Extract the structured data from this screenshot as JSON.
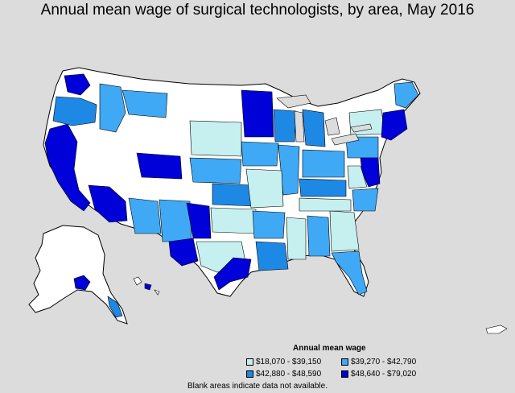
{
  "title": "Annual mean wage of surgical technologists, by area, May 2016",
  "colors": {
    "background": "#dcdcdc",
    "no_data": "#ffffff",
    "outline": "#000000",
    "bin1": "#c6f0f0",
    "bin2": "#3fa9f5",
    "bin3": "#1e88e5",
    "bin4": "#0000d8"
  },
  "legend": {
    "title": "Annual mean wage",
    "items": [
      {
        "label": "$18,070 - $39,150",
        "color": "#c6f0f0"
      },
      {
        "label": "$39,270 - $42,790",
        "color": "#3fa9f5"
      },
      {
        "label": "$42,880 - $48,590",
        "color": "#1e88e5"
      },
      {
        "label": "$48,640 - $79,020",
        "color": "#0000d8"
      }
    ]
  },
  "footnote": "Blank areas indicate data not available."
}
